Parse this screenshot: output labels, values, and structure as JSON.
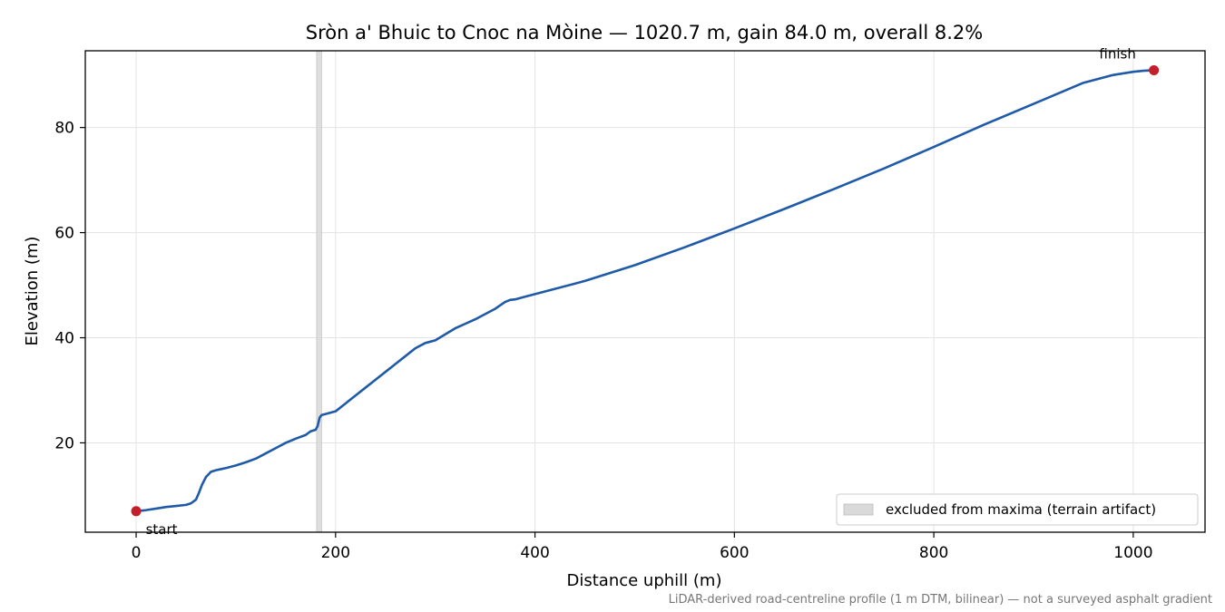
{
  "chart_data": {
    "type": "line",
    "title": "Sròn a' Bhuic to Cnoc na Mòine — 1020.7 m, gain 84.0 m, overall 8.2%",
    "xlabel": "Distance uphill (m)",
    "ylabel": "Elevation (m)",
    "xlim": [
      -51,
      1072
    ],
    "ylim": [
      3,
      94.6
    ],
    "xticks": [
      0,
      200,
      400,
      600,
      800,
      1000
    ],
    "yticks": [
      20,
      40,
      60,
      80
    ],
    "grid": true,
    "legend_position": "lower-right",
    "series": [
      {
        "color": "#1f5aa8",
        "x": [
          0,
          10,
          20,
          30,
          40,
          50,
          55,
          60,
          63,
          66,
          70,
          75,
          80,
          85,
          90,
          100,
          110,
          120,
          130,
          140,
          150,
          160,
          170,
          175,
          180,
          182,
          184,
          186,
          190,
          200,
          210,
          220,
          230,
          240,
          250,
          260,
          270,
          280,
          290,
          300,
          320,
          340,
          360,
          370,
          375,
          380,
          390,
          400,
          450,
          500,
          550,
          600,
          650,
          700,
          750,
          800,
          850,
          900,
          950,
          980,
          1000,
          1010,
          1020.7
        ],
        "y": [
          7.0,
          7.2,
          7.5,
          7.8,
          8.0,
          8.2,
          8.5,
          9.2,
          10.5,
          12.0,
          13.5,
          14.5,
          14.8,
          15.0,
          15.2,
          15.7,
          16.3,
          17.0,
          18.0,
          19.0,
          20.0,
          20.8,
          21.5,
          22.2,
          22.5,
          23.2,
          24.8,
          25.3,
          25.5,
          26.0,
          27.5,
          29.0,
          30.5,
          32.0,
          33.5,
          35.0,
          36.5,
          38.0,
          39.0,
          39.5,
          41.8,
          43.5,
          45.5,
          46.8,
          47.2,
          47.3,
          47.8,
          48.3,
          50.8,
          53.8,
          57.2,
          60.8,
          64.5,
          68.3,
          72.2,
          76.3,
          80.5,
          84.5,
          88.5,
          90.0,
          90.6,
          90.8,
          90.9
        ]
      }
    ],
    "points": [
      {
        "label": "start",
        "x": 0,
        "y": 7.0
      },
      {
        "label": "finish",
        "x": 1020.7,
        "y": 90.9
      }
    ],
    "point_color": "#c41e2a",
    "excluded_band": {
      "x0": 181,
      "x1": 186,
      "color": "#d9d9d9"
    },
    "legend": {
      "label": "excluded from maxima (terrain artifact)"
    },
    "footnote": "LiDAR-derived road-centreline profile (1 m DTM, bilinear) — not a surveyed asphalt gradient"
  }
}
